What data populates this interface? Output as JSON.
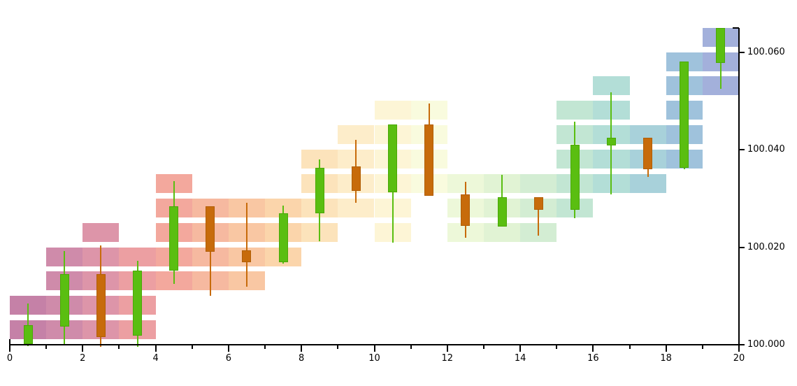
{
  "chart_data": {
    "type": "candlestick",
    "title": "",
    "xlabel": "",
    "ylabel": "",
    "grid": false,
    "legend": false,
    "x": [
      0.5,
      1.5,
      2.5,
      3.5,
      4.5,
      5.5,
      6.5,
      7.5,
      8.5,
      9.5,
      10.5,
      11.5,
      12.5,
      13.5,
      14.5,
      15.5,
      16.5,
      17.5,
      18.5,
      19.5
    ],
    "candles": [
      {
        "open": 100.0001,
        "high": 100.0085,
        "low": 99.9997,
        "close": 100.004
      },
      {
        "open": 100.0037,
        "high": 100.0192,
        "low": 99.9998,
        "close": 100.0145
      },
      {
        "open": 100.0145,
        "high": 100.0203,
        "low": 99.9996,
        "close": 100.0016
      },
      {
        "open": 100.0019,
        "high": 100.0172,
        "low": 99.9996,
        "close": 100.0152
      },
      {
        "open": 100.0152,
        "high": 100.0336,
        "low": 100.0124,
        "close": 100.0284
      },
      {
        "open": 100.0284,
        "high": 100.0284,
        "low": 100.01,
        "close": 100.0191
      },
      {
        "open": 100.0193,
        "high": 100.0291,
        "low": 100.0119,
        "close": 100.0169
      },
      {
        "open": 100.0169,
        "high": 100.0286,
        "low": 100.0167,
        "close": 100.0269
      },
      {
        "open": 100.027,
        "high": 100.038,
        "low": 100.0212,
        "close": 100.0363
      },
      {
        "open": 100.0365,
        "high": 100.042,
        "low": 100.0291,
        "close": 100.0315
      },
      {
        "open": 100.0313,
        "high": 100.0451,
        "low": 100.021,
        "close": 100.0451
      },
      {
        "open": 100.0451,
        "high": 100.0494,
        "low": 100.0305,
        "close": 100.0305
      },
      {
        "open": 100.0308,
        "high": 100.0334,
        "low": 100.0219,
        "close": 100.0243
      },
      {
        "open": 100.0243,
        "high": 100.0348,
        "low": 100.0243,
        "close": 100.0303
      },
      {
        "open": 100.0302,
        "high": 100.0302,
        "low": 100.0224,
        "close": 100.0277
      },
      {
        "open": 100.0277,
        "high": 100.0458,
        "low": 100.026,
        "close": 100.041
      },
      {
        "open": 100.0408,
        "high": 100.0518,
        "low": 100.0308,
        "close": 100.0425
      },
      {
        "open": 100.0425,
        "high": 100.0425,
        "low": 100.0344,
        "close": 100.036
      },
      {
        "open": 100.0363,
        "high": 100.058,
        "low": 100.036,
        "close": 100.058
      },
      {
        "open": 100.0578,
        "high": 100.0649,
        "low": 100.0525,
        "close": 100.0649
      }
    ],
    "up_color": "#5abe11",
    "down_color": "#c76b0b",
    "up_border": "#4aa807",
    "down_border": "#b05e06",
    "level_size": 0.005,
    "background_blocks": "one pastel block per 0.005 price level touched by each bar's high-low range, colored by bar index",
    "bar_colors": [
      "#c581a7",
      "#cf8baa",
      "#dd95a9",
      "#ec9fa2",
      "#f3a89d",
      "#f6b9a0",
      "#f9c7a3",
      "#fbd5ab",
      "#fce3bb",
      "#fdedca",
      "#fdf5d6",
      "#f9fbde",
      "#edf8d9",
      "#e1f3d4",
      "#d3edd3",
      "#c2e6d3",
      "#b3ded7",
      "#a8d1da",
      "#9fc2dc",
      "#a3b0db"
    ],
    "x_axis": {
      "range": [
        0,
        20
      ],
      "major_ticks": [
        0,
        2,
        4,
        6,
        8,
        10,
        12,
        14,
        16,
        18,
        20
      ],
      "major_labels": [
        "0",
        "2",
        "4",
        "6",
        "8",
        "10",
        "12",
        "14",
        "16",
        "18",
        "20"
      ],
      "minor_ticks": [
        1,
        3,
        5,
        7,
        9,
        11,
        13,
        15,
        17,
        19
      ],
      "position": "bottom"
    },
    "y_axis": {
      "range": [
        100.0,
        100.065
      ],
      "ticks": [
        {
          "value": 100.0,
          "label": "100.000"
        },
        {
          "value": 100.02,
          "label": "100.020"
        },
        {
          "value": 100.04,
          "label": "100.040"
        },
        {
          "value": 100.06,
          "label": "100.060"
        }
      ],
      "position": "right"
    }
  }
}
